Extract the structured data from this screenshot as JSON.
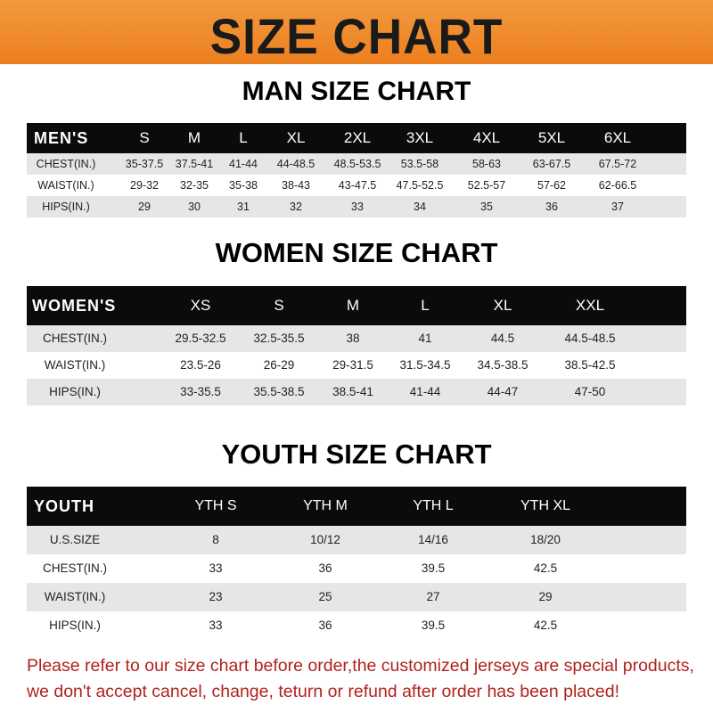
{
  "banner": {
    "title": "SIZE CHART",
    "color": "#ee8a2a"
  },
  "men": {
    "title": "MAN SIZE CHART",
    "header": [
      "MEN'S",
      "S",
      "M",
      "L",
      "XL",
      "2XL",
      "3XL",
      "4XL",
      "5XL",
      "6XL"
    ],
    "rows": [
      [
        "CHEST(IN.)",
        "35-37.5",
        "37.5-41",
        "41-44",
        "44-48.5",
        "48.5-53.5",
        "53.5-58",
        "58-63",
        "63-67.5",
        "67.5-72"
      ],
      [
        "WAIST(IN.)",
        "29-32",
        "32-35",
        "35-38",
        "38-43",
        "43-47.5",
        "47.5-52.5",
        "52.5-57",
        "57-62",
        "62-66.5"
      ],
      [
        "HIPS(IN.)",
        "29",
        "30",
        "31",
        "32",
        "33",
        "34",
        "35",
        "36",
        "37"
      ]
    ]
  },
  "women": {
    "title": "WOMEN SIZE CHART",
    "header": [
      "WOMEN'S",
      "XS",
      "S",
      "M",
      "L",
      "XL",
      "XXL"
    ],
    "rows": [
      [
        "CHEST(IN.)",
        "29.5-32.5",
        "32.5-35.5",
        "38",
        "41",
        "44.5",
        "44.5-48.5"
      ],
      [
        "WAIST(IN.)",
        "23.5-26",
        "26-29",
        "29-31.5",
        "31.5-34.5",
        "34.5-38.5",
        "38.5-42.5"
      ],
      [
        "HIPS(IN.)",
        "33-35.5",
        "35.5-38.5",
        "38.5-41",
        "41-44",
        "44-47",
        "47-50"
      ]
    ]
  },
  "youth": {
    "title": "YOUTH SIZE CHART",
    "header": [
      "YOUTH",
      "YTH S",
      "YTH M",
      "YTH L",
      "YTH XL"
    ],
    "rows": [
      [
        "U.S.SIZE",
        "8",
        "10/12",
        "14/16",
        "18/20"
      ],
      [
        "CHEST(IN.)",
        "33",
        "36",
        "39.5",
        "42.5"
      ],
      [
        "WAIST(IN.)",
        "23",
        "25",
        "27",
        "29"
      ],
      [
        "HIPS(IN.)",
        "33",
        "36",
        "39.5",
        "42.5"
      ]
    ]
  },
  "footer": {
    "line1": "Please refer to our size chart before order,the customized jerseys are special products,",
    "line2": "we don't accept cancel, change, teturn or refund after order has been placed!",
    "color": "#b0221e"
  }
}
